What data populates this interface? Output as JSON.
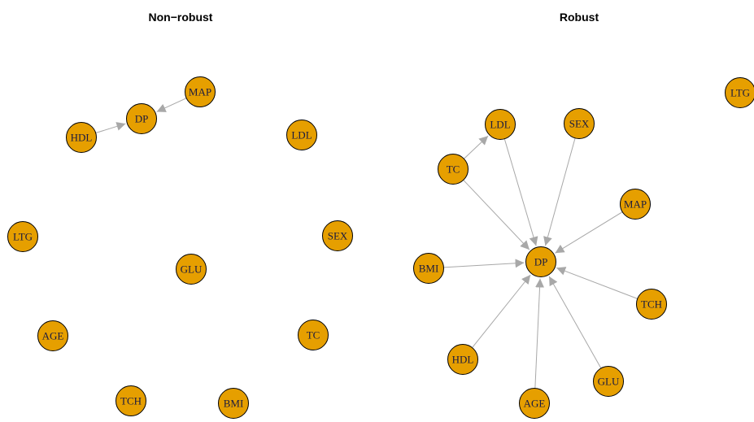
{
  "panels": [
    {
      "title": "Non−robust",
      "nodes": [
        "DP",
        "MAP",
        "HDL",
        "LDL",
        "LTG",
        "SEX",
        "GLU",
        "AGE",
        "TC",
        "TCH",
        "BMI"
      ]
    },
    {
      "title": "Robust",
      "nodes": [
        "DP",
        "LTG",
        "LDL",
        "SEX",
        "TC",
        "MAP",
        "BMI",
        "TCH",
        "HDL",
        "GLU",
        "AGE"
      ]
    }
  ]
}
